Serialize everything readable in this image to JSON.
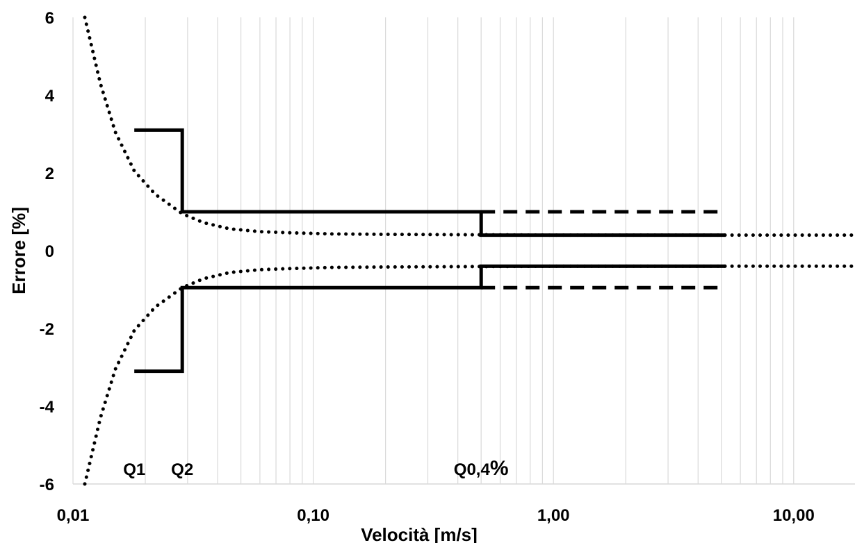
{
  "chart_data": {
    "type": "line",
    "xlabel": "Velocità [m/s]",
    "ylabel": "Errore [%]",
    "x_scale": "log",
    "xlim": [
      0.01,
      18
    ],
    "ylim": [
      -6,
      6
    ],
    "x_ticks": [
      {
        "value": 0.01,
        "label": "0,01"
      },
      {
        "value": 0.1,
        "label": "0,10"
      },
      {
        "value": 1,
        "label": "1,00"
      },
      {
        "value": 10,
        "label": "10,00"
      }
    ],
    "y_ticks": [
      {
        "value": 6,
        "label": "6"
      },
      {
        "value": 4,
        "label": "4"
      },
      {
        "value": 2,
        "label": "2"
      },
      {
        "value": 0,
        "label": "0"
      },
      {
        "value": -2,
        "label": "-2"
      },
      {
        "value": -4,
        "label": "-4"
      },
      {
        "value": -6,
        "label": "-6"
      }
    ],
    "grid": {
      "vertical_minor": true,
      "horizontal": false
    },
    "series": [
      {
        "style": "solid",
        "x": [
          0.018,
          0.0285,
          0.0285,
          0.5,
          0.5,
          5.2
        ],
        "y": [
          3.1,
          3.1,
          1.0,
          1.0,
          0.4,
          0.4
        ]
      },
      {
        "style": "solid",
        "x": [
          0.018,
          0.0285,
          0.0285,
          0.5,
          0.5,
          5.2
        ],
        "y": [
          -3.1,
          -3.1,
          -0.95,
          -0.95,
          -0.4,
          -0.4
        ]
      },
      {
        "style": "dashed",
        "x": [
          0.5,
          5.2
        ],
        "y": [
          1.0,
          1.0
        ]
      },
      {
        "style": "dashed",
        "x": [
          0.5,
          5.2
        ],
        "y": [
          -0.95,
          -0.95
        ]
      },
      {
        "style": "dotted",
        "x": [
          0.0112,
          0.013,
          0.015,
          0.018,
          0.022,
          0.0285,
          0.035,
          0.045,
          0.06,
          0.08,
          0.12,
          0.2,
          0.4,
          1,
          3,
          10,
          18
        ],
        "y": [
          6.0,
          4.3,
          3.05,
          2.05,
          1.45,
          0.95,
          0.72,
          0.56,
          0.49,
          0.46,
          0.43,
          0.42,
          0.41,
          0.4,
          0.4,
          0.4,
          0.4
        ]
      },
      {
        "style": "dotted",
        "x": [
          0.0112,
          0.013,
          0.015,
          0.018,
          0.022,
          0.0285,
          0.035,
          0.045,
          0.06,
          0.08,
          0.12,
          0.2,
          0.4,
          1,
          3,
          10,
          18
        ],
        "y": [
          -6.0,
          -4.3,
          -3.05,
          -2.05,
          -1.45,
          -0.95,
          -0.72,
          -0.56,
          -0.49,
          -0.46,
          -0.43,
          -0.42,
          -0.41,
          -0.4,
          -0.4,
          -0.4,
          -0.4
        ]
      }
    ],
    "annotations": [
      {
        "text": "Q1",
        "x": 0.018
      },
      {
        "text": "Q2",
        "x": 0.0285
      },
      {
        "text": "Q0,4",
        "suffix": "%",
        "x": 0.5
      }
    ]
  }
}
